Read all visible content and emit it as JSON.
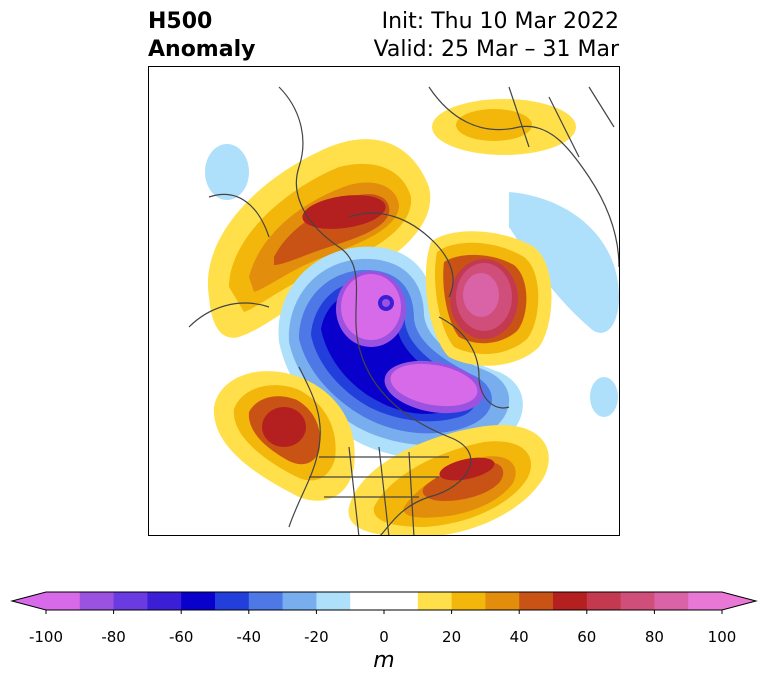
{
  "header": {
    "title_line1": "H500",
    "title_line2": "Anomaly",
    "init_label": "Init: Thu 10 Mar 2022",
    "valid_label": "Valid: 25 Mar – 31 Mar"
  },
  "colorbar": {
    "unit": "m",
    "ticks": [
      "-100",
      "-80",
      "-60",
      "-40",
      "-20",
      "0",
      "20",
      "40",
      "60",
      "80",
      "100"
    ],
    "colors": [
      "#d66ae8",
      "#9b52e0",
      "#6a3be0",
      "#3b1fd6",
      "#0a00cc",
      "#233fdb",
      "#4d78e6",
      "#79aeee",
      "#aee0fb",
      "#ffffff",
      "#ffffff",
      "#ffe04b",
      "#f2b70a",
      "#e28d0c",
      "#c95315",
      "#b3201f",
      "#c3394f",
      "#cf4e7a",
      "#da62a6",
      "#e877d6"
    ],
    "extend": "both"
  },
  "map": {
    "projection": "north-polar-stereographic",
    "field": "500 hPa geopotential height anomaly",
    "features": [
      "positive anomaly over Alaska/Bering",
      "negative anomaly over Arctic/Canada",
      "positive anomaly over Scandinavia-Siberia",
      "positive anomaly over North Pacific",
      "positive anomaly over North Atlantic"
    ]
  }
}
